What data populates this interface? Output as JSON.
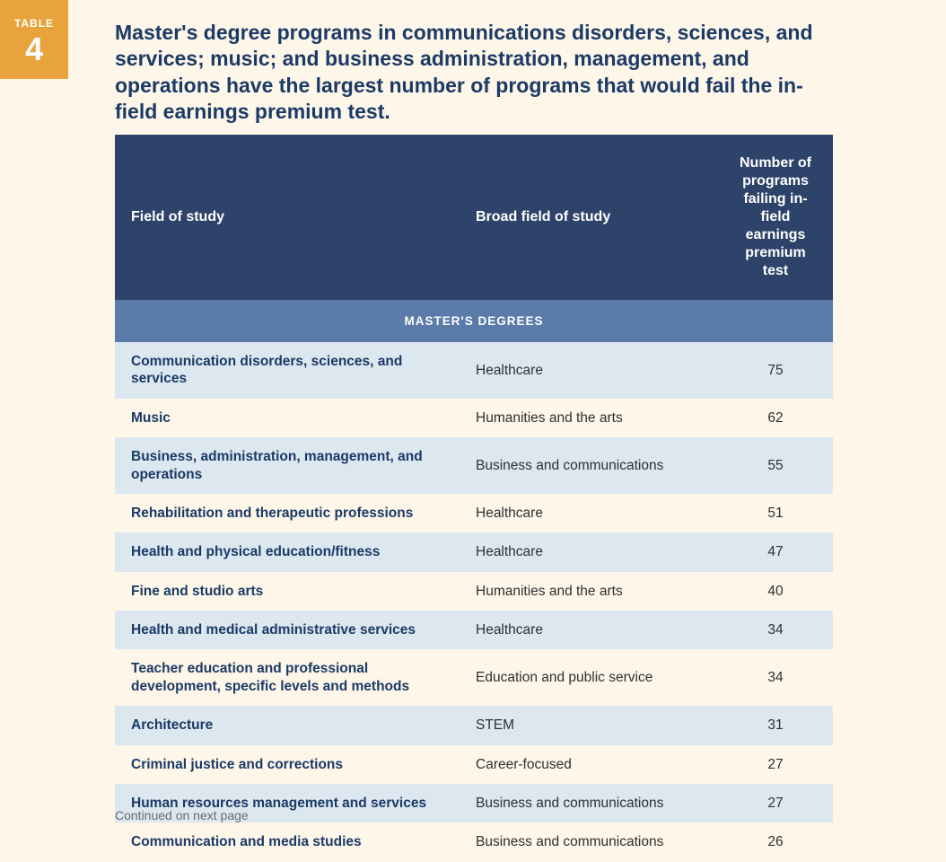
{
  "badge": {
    "label": "TABLE",
    "number": "4"
  },
  "title": "Master's degree programs in communications disorders, sciences, and services; music; and business administration, management, and operations have the largest number of programs that would fail the in-field earnings premium test.",
  "table": {
    "columns": [
      "Field of study",
      "Broad field of study",
      "Number of programs failing in-field earnings premium test"
    ],
    "section_label": "MASTER'S DEGREES",
    "rows": [
      {
        "field": "Communication disorders, sciences, and services",
        "broad": "Healthcare",
        "count": "75"
      },
      {
        "field": "Music",
        "broad": "Humanities and the arts",
        "count": "62"
      },
      {
        "field": "Business, administration, management, and operations",
        "broad": "Business and communications",
        "count": "55"
      },
      {
        "field": "Rehabilitation and therapeutic professions",
        "broad": "Healthcare",
        "count": "51"
      },
      {
        "field": "Health and physical education/fitness",
        "broad": "Healthcare",
        "count": "47"
      },
      {
        "field": "Fine and studio arts",
        "broad": "Humanities and the arts",
        "count": "40"
      },
      {
        "field": "Health and medical administrative services",
        "broad": "Healthcare",
        "count": "34"
      },
      {
        "field": "Teacher education and professional development, specific levels and methods",
        "broad": "Education and public service",
        "count": "34"
      },
      {
        "field": "Architecture",
        "broad": "STEM",
        "count": "31"
      },
      {
        "field": "Criminal justice and corrections",
        "broad": "Career-focused",
        "count": "27"
      },
      {
        "field": "Human resources management and services",
        "broad": "Business and communications",
        "count": "27"
      },
      {
        "field": "Communication and media studies",
        "broad": "Business and communications",
        "count": "26"
      }
    ]
  },
  "continued_text": "Continued on next page",
  "colors": {
    "page_bg": "#fdf6e9",
    "badge_bg": "#e8a33d",
    "header_bg": "#2e4369",
    "section_bg": "#5b7ba8",
    "row_shade": "#dce7f0",
    "title_color": "#1b3a66",
    "field_color": "#1b3a66",
    "text_color": "#303030",
    "muted_text": "#6b6b6b"
  }
}
